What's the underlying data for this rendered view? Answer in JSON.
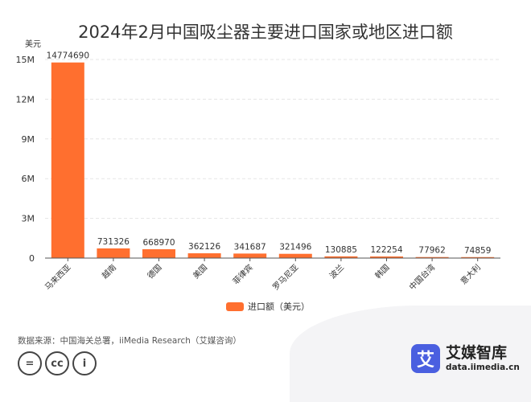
{
  "title": "2024年2月中国吸尘器主要进口国家或地区进口额",
  "legend_label": "进口额（美元）",
  "source": "数据来源：中国海关总署，iiMedia Research（艾媒咨询）",
  "brand": {
    "logo_char": "艾",
    "name": "艾媒智库",
    "url": "data.iimedia.cn"
  },
  "colors": {
    "bar": "#ff6f2f",
    "grid": "#e5e5e5",
    "axis": "#555555"
  },
  "cc_icons": [
    "equal-icon",
    "cc-icon",
    "person-icon"
  ],
  "cc_labels": [
    "=",
    "cc",
    "i"
  ],
  "chart_data": {
    "type": "bar",
    "title": "2024年2月中国吸尘器主要进口国家或地区进口额",
    "ylabel": "美元",
    "xlabel": "",
    "ylim": [
      0,
      15000000
    ],
    "yticks": [
      0,
      3000000,
      6000000,
      9000000,
      12000000,
      15000000
    ],
    "ytick_labels": [
      "0",
      "3M",
      "6M",
      "9M",
      "12M",
      "15M"
    ],
    "grid": true,
    "legend_position": "bottom",
    "categories": [
      "马来西亚",
      "越南",
      "德国",
      "美国",
      "菲律宾",
      "罗马尼亚",
      "波兰",
      "韩国",
      "中国台湾",
      "意大利"
    ],
    "series": [
      {
        "name": "进口额（美元）",
        "values": [
          14774690,
          731326,
          668970,
          362126,
          341687,
          321496,
          130885,
          122254,
          77962,
          74859
        ]
      }
    ]
  }
}
